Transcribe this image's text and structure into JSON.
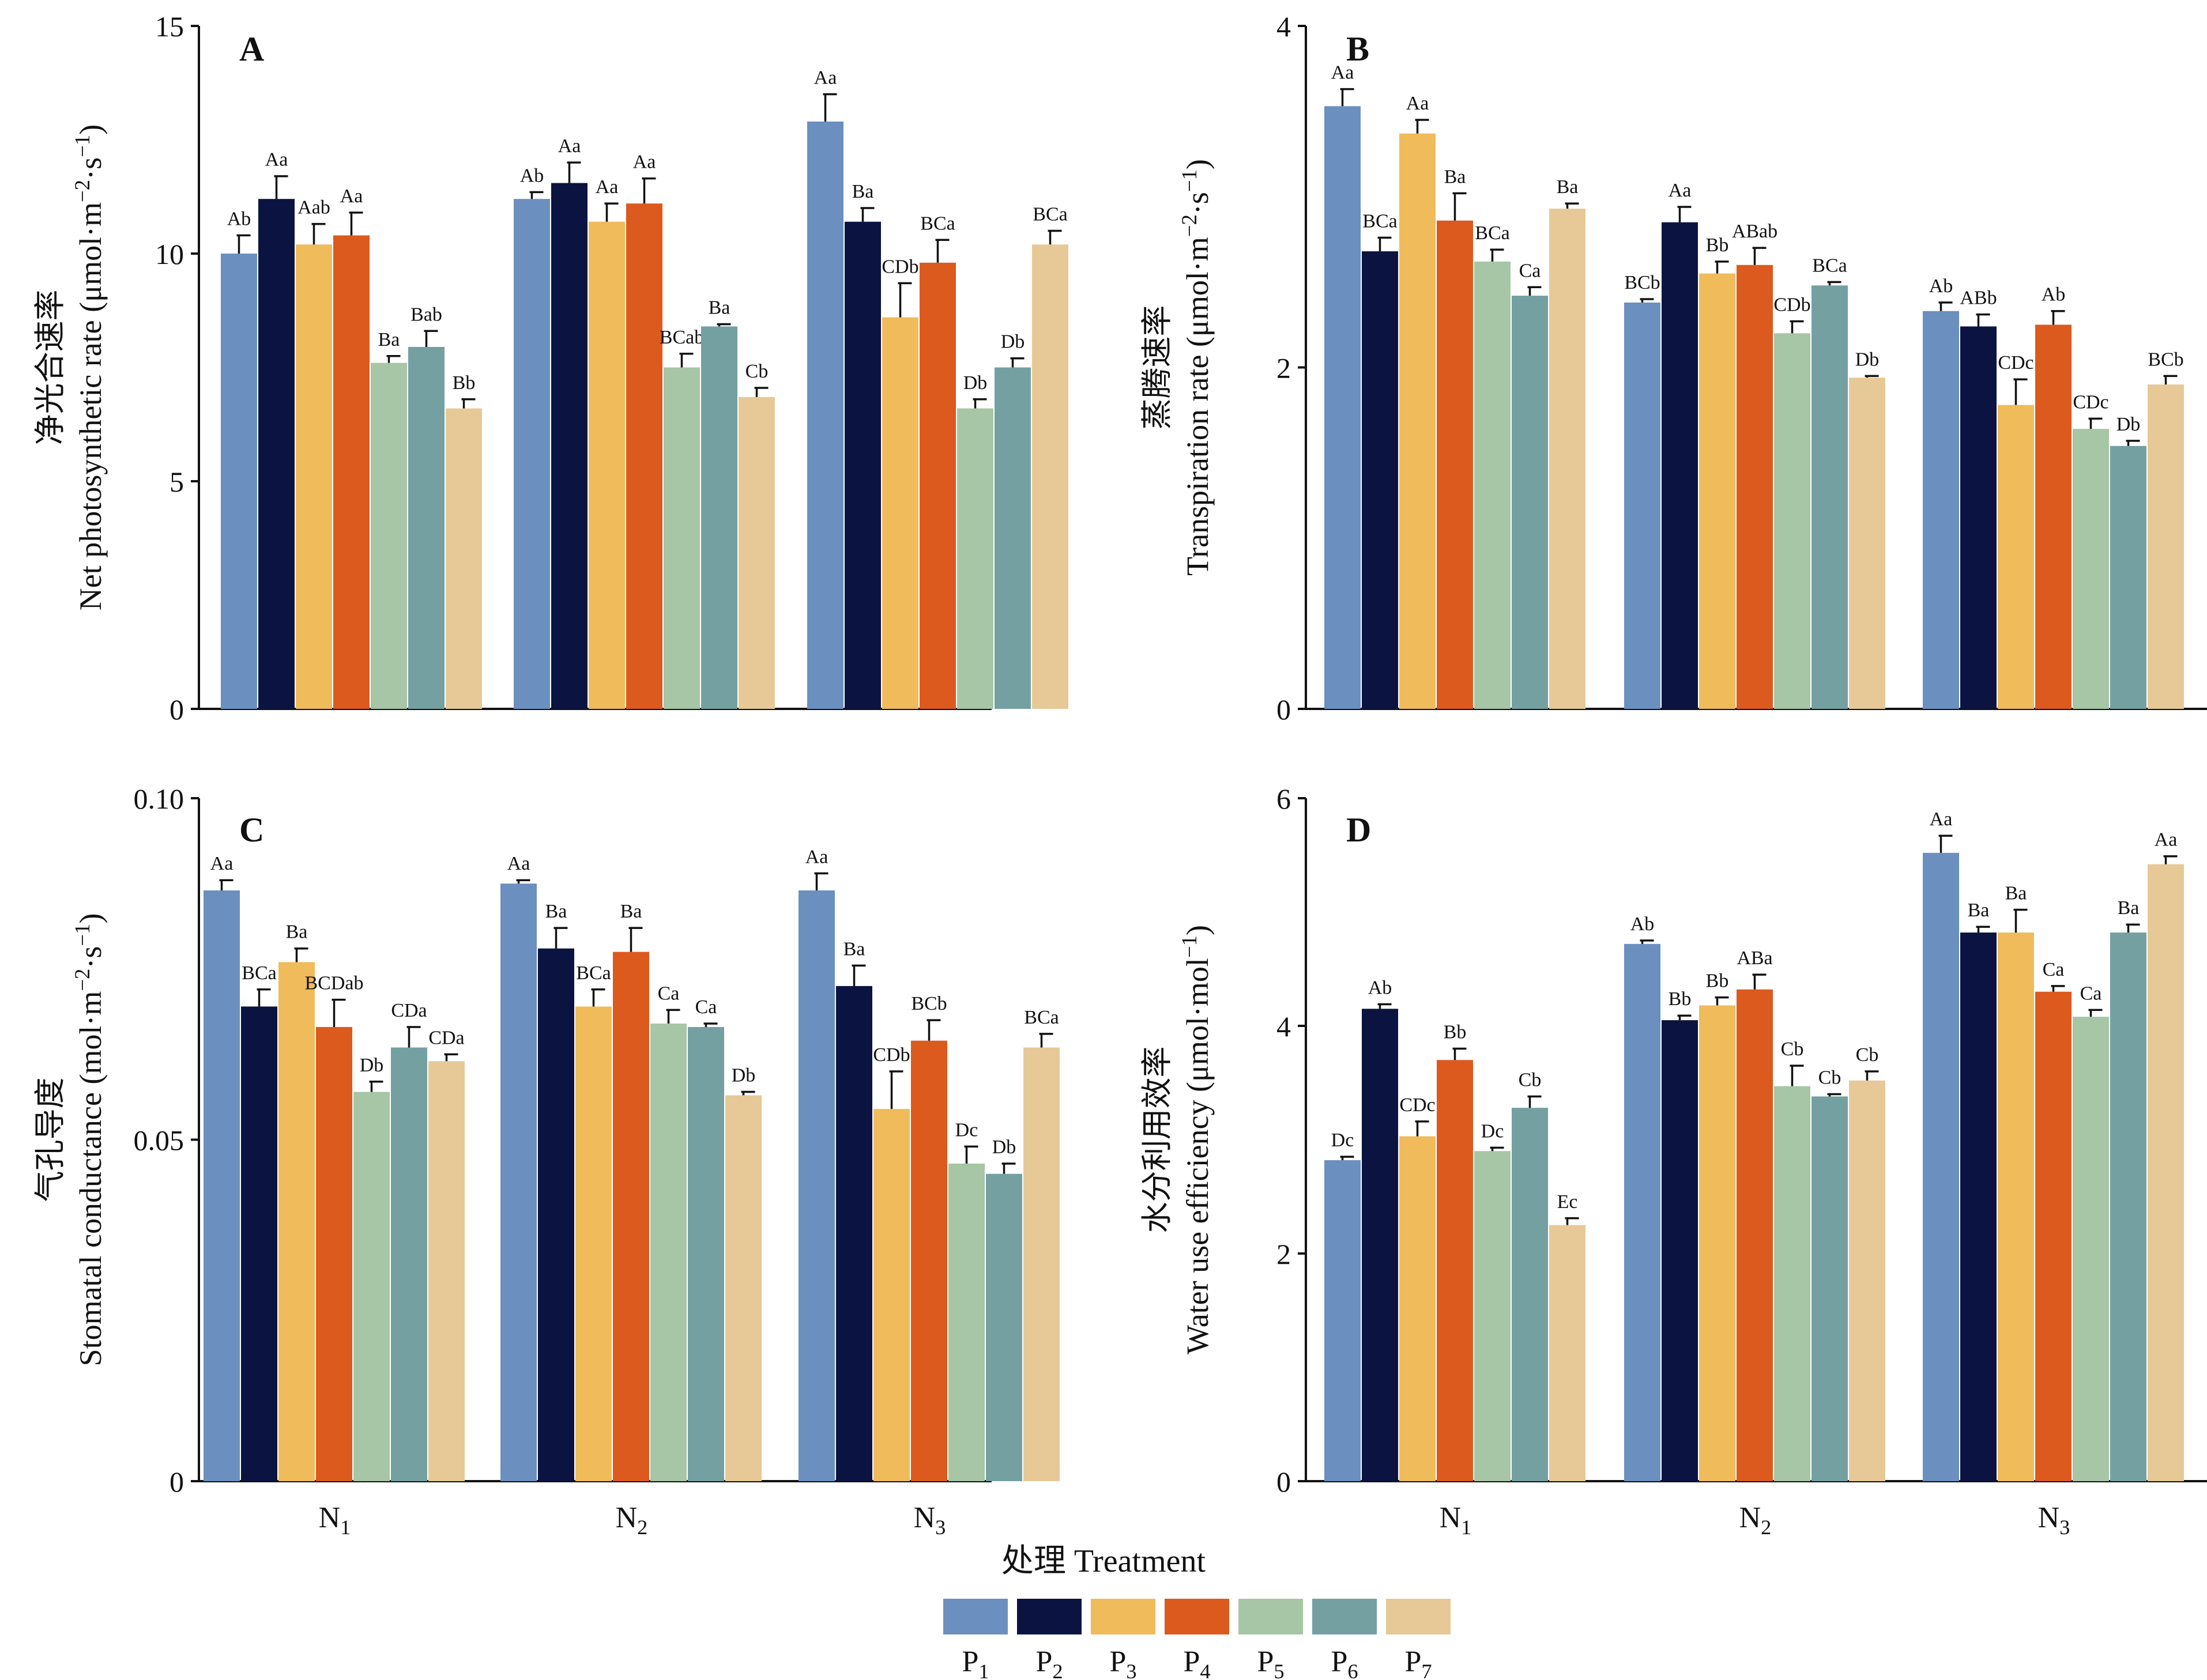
{
  "figure": {
    "xlabel": "处理 Treatment",
    "groups": [
      "N1",
      "N2",
      "N3"
    ],
    "legend": [
      {
        "label": "P1",
        "color": "#6b8fbf"
      },
      {
        "label": "P2",
        "color": "#0b1440"
      },
      {
        "label": "P3",
        "color": "#f0bb5a"
      },
      {
        "label": "P4",
        "color": "#dc5a1e"
      },
      {
        "label": "P5",
        "color": "#a6c6a6"
      },
      {
        "label": "P6",
        "color": "#74a0a2"
      },
      {
        "label": "P7",
        "color": "#e6c996"
      }
    ]
  },
  "chart_data": [
    {
      "type": "bar",
      "panel": "A",
      "ylabel_cn": "净光合速率",
      "ylabel_en": "Net photosynthetic rate (μmol·m−2·s−1)",
      "ylim": [
        0,
        15
      ],
      "yticks": [
        "0",
        "5",
        "10",
        "15"
      ],
      "categories": [
        "N1",
        "N2",
        "N3"
      ],
      "series": [
        {
          "name": "P1",
          "values": [
            10.0,
            11.2,
            12.9
          ],
          "errors": [
            0.4,
            0.15,
            0.6
          ],
          "labels": [
            "Ab",
            "Ab",
            "Aa"
          ]
        },
        {
          "name": "P2",
          "values": [
            11.2,
            11.55,
            10.7
          ],
          "errors": [
            0.5,
            0.45,
            0.3
          ],
          "labels": [
            "Aa",
            "Aa",
            "Ba"
          ]
        },
        {
          "name": "P3",
          "values": [
            10.2,
            10.7,
            8.6
          ],
          "errors": [
            0.45,
            0.4,
            0.75
          ],
          "labels": [
            "Aab",
            "Aa",
            "CDb"
          ]
        },
        {
          "name": "P4",
          "values": [
            10.4,
            11.1,
            9.8
          ],
          "errors": [
            0.5,
            0.55,
            0.5
          ],
          "labels": [
            "Aa",
            "Aa",
            "BCa"
          ]
        },
        {
          "name": "P5",
          "values": [
            7.6,
            7.5,
            6.6
          ],
          "errors": [
            0.15,
            0.3,
            0.2
          ],
          "labels": [
            "Ba",
            "BCab",
            "Db"
          ]
        },
        {
          "name": "P6",
          "values": [
            7.95,
            8.4,
            7.5
          ],
          "errors": [
            0.35,
            0.05,
            0.2
          ],
          "labels": [
            "Bab",
            "Ba",
            "Db"
          ]
        },
        {
          "name": "P7",
          "values": [
            6.6,
            6.85,
            10.2
          ],
          "errors": [
            0.2,
            0.2,
            0.3
          ],
          "labels": [
            "Bb",
            "Cb",
            "BCa"
          ]
        }
      ]
    },
    {
      "type": "bar",
      "panel": "B",
      "ylabel_cn": "蒸腾速率",
      "ylabel_en": "Transpiration rate (μmol·m−2·s−1)",
      "ylim": [
        0,
        4
      ],
      "yticks": [
        "0",
        "2",
        "4"
      ],
      "categories": [
        "N1",
        "N2",
        "N3"
      ],
      "series": [
        {
          "name": "P1",
          "values": [
            3.53,
            2.38,
            2.33
          ],
          "errors": [
            0.1,
            0.02,
            0.05
          ],
          "labels": [
            "Aa",
            "BCb",
            "Ab"
          ]
        },
        {
          "name": "P2",
          "values": [
            2.68,
            2.85,
            2.24
          ],
          "errors": [
            0.08,
            0.09,
            0.07
          ],
          "labels": [
            "BCa",
            "Aa",
            "ABb"
          ]
        },
        {
          "name": "P3",
          "values": [
            3.37,
            2.55,
            1.78
          ],
          "errors": [
            0.08,
            0.07,
            0.15
          ],
          "labels": [
            "Aa",
            "Bb",
            "CDc"
          ]
        },
        {
          "name": "P4",
          "values": [
            2.86,
            2.6,
            2.25
          ],
          "errors": [
            0.16,
            0.1,
            0.08
          ],
          "labels": [
            "Ba",
            "ABab",
            "Ab"
          ]
        },
        {
          "name": "P5",
          "values": [
            2.62,
            2.2,
            1.64
          ],
          "errors": [
            0.07,
            0.07,
            0.06
          ],
          "labels": [
            "BCa",
            "CDb",
            "CDc"
          ]
        },
        {
          "name": "P6",
          "values": [
            2.42,
            2.48,
            1.54
          ],
          "errors": [
            0.05,
            0.02,
            0.03
          ],
          "labels": [
            "Ca",
            "BCa",
            "Db"
          ]
        },
        {
          "name": "P7",
          "values": [
            2.93,
            1.94,
            1.9
          ],
          "errors": [
            0.03,
            0.01,
            0.05
          ],
          "labels": [
            "Ba",
            "Db",
            "BCb"
          ]
        }
      ]
    },
    {
      "type": "bar",
      "panel": "C",
      "ylabel_cn": "气孔导度",
      "ylabel_en": "Stomatal conductance (mol·m−2·s−1)",
      "ylim": [
        0,
        0.1
      ],
      "yticks": [
        "0",
        "0.05",
        "0.10"
      ],
      "categories": [
        "N1",
        "N2",
        "N3"
      ],
      "series": [
        {
          "name": "P1",
          "values": [
            0.0865,
            0.0875,
            0.0865
          ],
          "errors": [
            0.0015,
            0.0005,
            0.0025
          ],
          "labels": [
            "Aa",
            "Aa",
            "Aa"
          ]
        },
        {
          "name": "P2",
          "values": [
            0.0695,
            0.078,
            0.0725
          ],
          "errors": [
            0.0025,
            0.003,
            0.003
          ],
          "labels": [
            "BCa",
            "Ba",
            "Ba"
          ]
        },
        {
          "name": "P3",
          "values": [
            0.076,
            0.0695,
            0.0545
          ],
          "errors": [
            0.002,
            0.0025,
            0.0055
          ],
          "labels": [
            "Ba",
            "BCa",
            "CDb"
          ]
        },
        {
          "name": "P4",
          "values": [
            0.0665,
            0.0775,
            0.0645
          ],
          "errors": [
            0.004,
            0.0035,
            0.003
          ],
          "labels": [
            "BCDab",
            "Ba",
            "BCb"
          ]
        },
        {
          "name": "P5",
          "values": [
            0.057,
            0.067,
            0.0465
          ],
          "errors": [
            0.0015,
            0.002,
            0.0025
          ],
          "labels": [
            "Db",
            "Ca",
            "Dc"
          ]
        },
        {
          "name": "P6",
          "values": [
            0.0635,
            0.0665,
            0.045
          ],
          "errors": [
            0.003,
            0.0005,
            0.0015
          ],
          "labels": [
            "CDa",
            "Ca",
            "Db"
          ]
        },
        {
          "name": "P7",
          "values": [
            0.0615,
            0.0565,
            0.0635
          ],
          "errors": [
            0.001,
            0.0005,
            0.002
          ],
          "labels": [
            "CDa",
            "Db",
            "BCa"
          ]
        }
      ]
    },
    {
      "type": "bar",
      "panel": "D",
      "ylabel_cn": "水分利用效率",
      "ylabel_en": "Water use efficiency (μmol·mol−1)",
      "ylim": [
        0,
        6
      ],
      "yticks": [
        "0",
        "2",
        "4",
        "6"
      ],
      "categories": [
        "N1",
        "N2",
        "N3"
      ],
      "series": [
        {
          "name": "P1",
          "values": [
            2.82,
            4.72,
            5.52
          ],
          "errors": [
            0.03,
            0.03,
            0.15
          ],
          "labels": [
            "Dc",
            "Ab",
            "Aa"
          ]
        },
        {
          "name": "P2",
          "values": [
            4.15,
            4.05,
            4.82
          ],
          "errors": [
            0.04,
            0.04,
            0.05
          ],
          "labels": [
            "Ab",
            "Bb",
            "Ba"
          ]
        },
        {
          "name": "P3",
          "values": [
            3.03,
            4.18,
            4.82
          ],
          "errors": [
            0.13,
            0.07,
            0.2
          ],
          "labels": [
            "CDc",
            "Bb",
            "Ba"
          ]
        },
        {
          "name": "P4",
          "values": [
            3.7,
            4.32,
            4.3
          ],
          "errors": [
            0.1,
            0.13,
            0.05
          ],
          "labels": [
            "Bb",
            "ABa",
            "Ca"
          ]
        },
        {
          "name": "P5",
          "values": [
            2.9,
            3.47,
            4.08
          ],
          "errors": [
            0.03,
            0.18,
            0.06
          ],
          "labels": [
            "Dc",
            "Cb",
            "Ca"
          ]
        },
        {
          "name": "P6",
          "values": [
            3.28,
            3.38,
            4.82
          ],
          "errors": [
            0.1,
            0.02,
            0.07
          ],
          "labels": [
            "Cb",
            "Cb",
            "Ba"
          ]
        },
        {
          "name": "P7",
          "values": [
            2.25,
            3.52,
            5.42
          ],
          "errors": [
            0.06,
            0.08,
            0.07
          ],
          "labels": [
            "Ec",
            "Cb",
            "Aa"
          ]
        }
      ]
    }
  ]
}
